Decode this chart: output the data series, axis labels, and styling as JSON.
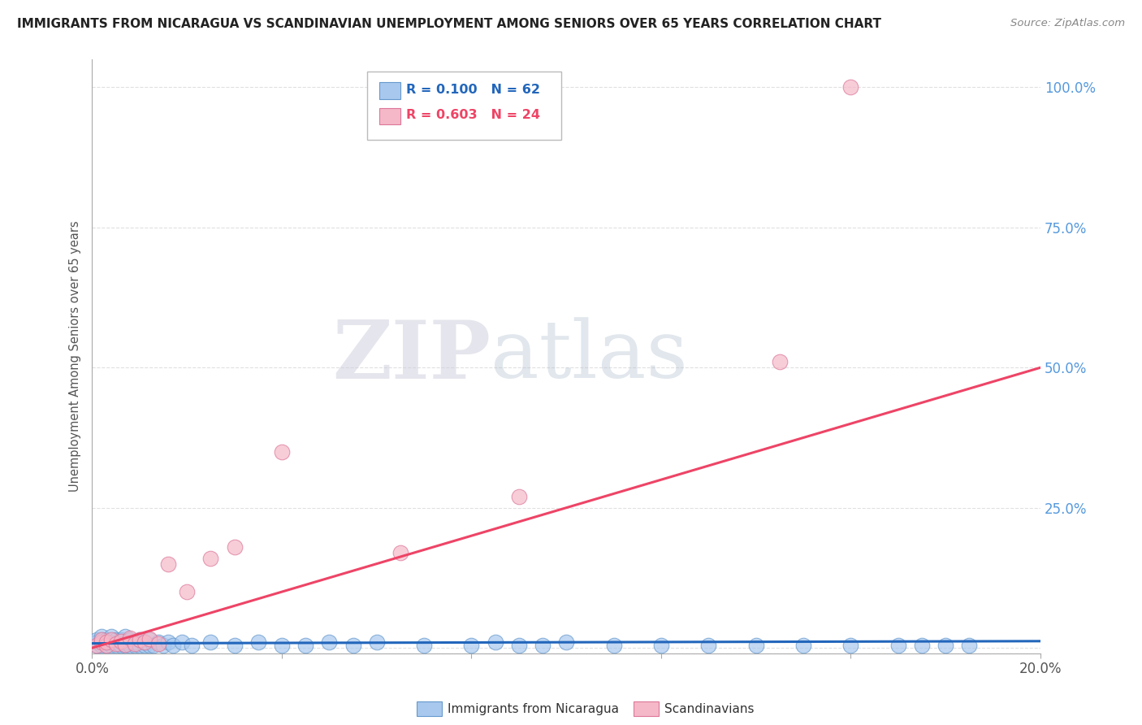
{
  "title": "IMMIGRANTS FROM NICARAGUA VS SCANDINAVIAN UNEMPLOYMENT AMONG SENIORS OVER 65 YEARS CORRELATION CHART",
  "source": "Source: ZipAtlas.com",
  "ylabel": "Unemployment Among Seniors over 65 years",
  "legend_label1": "Immigrants from Nicaragua",
  "legend_label2": "Scandinavians",
  "legend_r1": "R = 0.100",
  "legend_n1": "N = 62",
  "legend_r2": "R = 0.603",
  "legend_n2": "N = 24",
  "color_blue": "#A8C8EE",
  "color_pink": "#F5B8C8",
  "color_blue_line": "#2266BB",
  "color_pink_line": "#EE4466",
  "color_blue_edge": "#6699CC",
  "color_pink_edge": "#DD7799",
  "xlim": [
    0.0,
    0.2
  ],
  "ylim": [
    -0.01,
    1.05
  ],
  "xticks": [
    0.0,
    0.04,
    0.08,
    0.12,
    0.16,
    0.2
  ],
  "yticks": [
    0.0,
    0.25,
    0.5,
    0.75,
    1.0
  ],
  "watermark_zip": "ZIP",
  "watermark_atlas": "atlas",
  "background_color": "#FFFFFF",
  "grid_color": "#DDDDDD",
  "blue_scatter_x": [
    0.001,
    0.001,
    0.001,
    0.002,
    0.002,
    0.002,
    0.002,
    0.003,
    0.003,
    0.003,
    0.004,
    0.004,
    0.004,
    0.005,
    0.005,
    0.005,
    0.006,
    0.006,
    0.007,
    0.007,
    0.007,
    0.008,
    0.008,
    0.009,
    0.009,
    0.01,
    0.01,
    0.011,
    0.011,
    0.012,
    0.012,
    0.013,
    0.014,
    0.015,
    0.016,
    0.017,
    0.019,
    0.021,
    0.025,
    0.03,
    0.035,
    0.04,
    0.045,
    0.05,
    0.055,
    0.06,
    0.07,
    0.08,
    0.085,
    0.09,
    0.095,
    0.1,
    0.11,
    0.12,
    0.13,
    0.14,
    0.15,
    0.16,
    0.17,
    0.175,
    0.18,
    0.185
  ],
  "blue_scatter_y": [
    0.005,
    0.01,
    0.015,
    0.005,
    0.01,
    0.015,
    0.02,
    0.005,
    0.01,
    0.015,
    0.005,
    0.01,
    0.02,
    0.005,
    0.01,
    0.015,
    0.005,
    0.015,
    0.005,
    0.01,
    0.02,
    0.005,
    0.015,
    0.005,
    0.01,
    0.005,
    0.015,
    0.005,
    0.01,
    0.005,
    0.015,
    0.005,
    0.01,
    0.005,
    0.01,
    0.005,
    0.01,
    0.005,
    0.01,
    0.005,
    0.01,
    0.005,
    0.005,
    0.01,
    0.005,
    0.01,
    0.005,
    0.005,
    0.01,
    0.005,
    0.005,
    0.01,
    0.005,
    0.005,
    0.005,
    0.005,
    0.005,
    0.005,
    0.005,
    0.005,
    0.005,
    0.005
  ],
  "pink_scatter_x": [
    0.001,
    0.002,
    0.002,
    0.003,
    0.003,
    0.004,
    0.005,
    0.006,
    0.007,
    0.008,
    0.009,
    0.01,
    0.011,
    0.012,
    0.014,
    0.016,
    0.02,
    0.025,
    0.03,
    0.04,
    0.065,
    0.09,
    0.145,
    0.16
  ],
  "pink_scatter_y": [
    0.005,
    0.01,
    0.015,
    0.005,
    0.01,
    0.015,
    0.008,
    0.012,
    0.006,
    0.018,
    0.008,
    0.014,
    0.01,
    0.016,
    0.008,
    0.15,
    0.1,
    0.16,
    0.18,
    0.35,
    0.17,
    0.27,
    0.51,
    1.0
  ],
  "blue_line_x": [
    0.0,
    0.2
  ],
  "blue_line_y": [
    0.008,
    0.012
  ],
  "pink_line_x": [
    0.0,
    0.2
  ],
  "pink_line_y": [
    0.0,
    0.5
  ]
}
